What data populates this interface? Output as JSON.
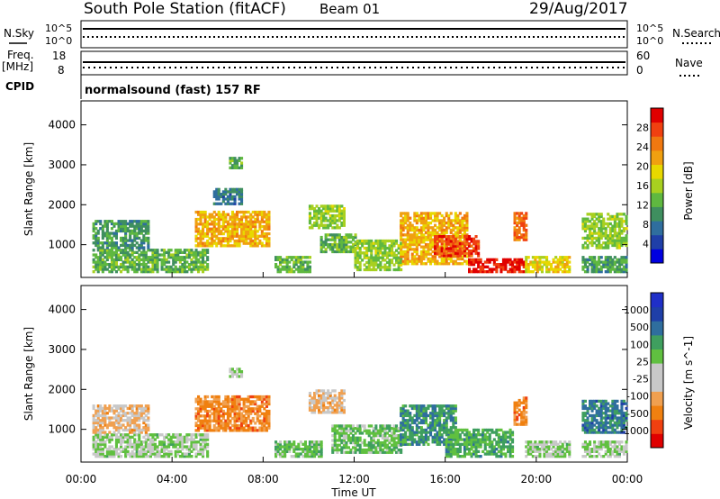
{
  "header": {
    "station": "South Pole Station (fitACF)",
    "beam": "Beam 01",
    "date": "29/Aug/2017"
  },
  "sky_panel": {
    "left_label": "N.Sky",
    "left_ticks": [
      "10^5",
      "10^0"
    ],
    "right_label": "N.Search",
    "right_ticks": [
      "10^5",
      "10^0"
    ]
  },
  "freq_panel": {
    "left_label": "Freq.",
    "left_unit": "[MHz]",
    "left_ticks": [
      "18",
      "8"
    ],
    "right_label": "Nave",
    "right_ticks": [
      "60",
      "0"
    ]
  },
  "cpid": {
    "label": "CPID",
    "text": "normalsound (fast) 157 RF"
  },
  "x_axis": {
    "label": "Time UT",
    "ticks": [
      "00:00",
      "04:00",
      "08:00",
      "12:00",
      "16:00",
      "20:00",
      "00:00"
    ],
    "range_hours": [
      0,
      24
    ]
  },
  "chart_data": [
    {
      "type": "heatmap",
      "name": "power",
      "ylabel": "Slant Range [km]",
      "ylim": [
        180,
        4600
      ],
      "yticks": [
        "1000",
        "2000",
        "3000",
        "4000"
      ],
      "colorbar": {
        "label": "Power [dB]",
        "ticks": [
          "28",
          "24",
          "20",
          "16",
          "12",
          "8",
          "4"
        ],
        "colors": [
          "#0000e0",
          "#1f3fa8",
          "#2f6e9e",
          "#3f8f5f",
          "#5fb840",
          "#a8d020",
          "#e8d800",
          "#f0a010",
          "#f07810",
          "#f04010",
          "#e00000"
        ],
        "range": [
          0,
          30
        ]
      },
      "regions": [
        {
          "t": [
            0.5,
            5.5
          ],
          "r": [
            300,
            900
          ],
          "v": 12
        },
        {
          "t": [
            0.5,
            3.0
          ],
          "r": [
            900,
            1600
          ],
          "v": 10
        },
        {
          "t": [
            5.0,
            8.2
          ],
          "r": [
            950,
            1800
          ],
          "v": 20
        },
        {
          "t": [
            5.8,
            7.0
          ],
          "r": [
            2000,
            2400
          ],
          "v": 8
        },
        {
          "t": [
            6.5,
            7.0
          ],
          "r": [
            2900,
            3200
          ],
          "v": 12
        },
        {
          "t": [
            8.5,
            10.0
          ],
          "r": [
            300,
            700
          ],
          "v": 12
        },
        {
          "t": [
            10.0,
            11.5
          ],
          "r": [
            1400,
            2000
          ],
          "v": 14
        },
        {
          "t": [
            10.5,
            12.0
          ],
          "r": [
            800,
            1250
          ],
          "v": 12
        },
        {
          "t": [
            12.0,
            14.0
          ],
          "r": [
            350,
            1100
          ],
          "v": 14
        },
        {
          "t": [
            14.0,
            17.0
          ],
          "r": [
            500,
            1800
          ],
          "v": 20
        },
        {
          "t": [
            15.5,
            17.5
          ],
          "r": [
            700,
            1200
          ],
          "v": 26
        },
        {
          "t": [
            17.0,
            19.5
          ],
          "r": [
            300,
            650
          ],
          "v": 28
        },
        {
          "t": [
            19.0,
            19.6
          ],
          "r": [
            1100,
            1800
          ],
          "v": 24
        },
        {
          "t": [
            19.5,
            21.5
          ],
          "r": [
            300,
            700
          ],
          "v": 18
        },
        {
          "t": [
            22.0,
            24.0
          ],
          "r": [
            900,
            1800
          ],
          "v": 14
        },
        {
          "t": [
            22.0,
            24.0
          ],
          "r": [
            300,
            700
          ],
          "v": 10
        }
      ]
    },
    {
      "type": "heatmap",
      "name": "velocity",
      "ylabel": "Slant Range [km]",
      "ylim": [
        180,
        4600
      ],
      "yticks": [
        "1000",
        "2000",
        "3000",
        "4000"
      ],
      "colorbar": {
        "label": "Velocity [m s^-1]",
        "ticks": [
          "1000",
          "500",
          "100",
          "25",
          "-25",
          "-100",
          "-500",
          "-1000"
        ],
        "colors": [
          "#e00000",
          "#f04010",
          "#f08010",
          "#f0a050",
          "#c8c8c8",
          "#c8c8c8",
          "#60c040",
          "#3f9f5f",
          "#2f6e9e",
          "#1f3fa8",
          "#1f2fc8"
        ],
        "range": [
          -1000,
          1000
        ]
      },
      "regions": [
        {
          "t": [
            0.5,
            5.5
          ],
          "r": [
            300,
            900
          ],
          "v": 100
        },
        {
          "t": [
            0.5,
            3.0
          ],
          "r": [
            900,
            1600
          ],
          "v": -300
        },
        {
          "t": [
            5.0,
            8.2
          ],
          "r": [
            950,
            1800
          ],
          "v": -500
        },
        {
          "t": [
            6.5,
            7.0
          ],
          "r": [
            2300,
            2500
          ],
          "v": 0
        },
        {
          "t": [
            8.5,
            10.5
          ],
          "r": [
            300,
            700
          ],
          "v": 200
        },
        {
          "t": [
            10.0,
            11.5
          ],
          "r": [
            1400,
            2000
          ],
          "v": -300
        },
        {
          "t": [
            11.0,
            14.0
          ],
          "r": [
            400,
            1100
          ],
          "v": 200
        },
        {
          "t": [
            14.0,
            16.5
          ],
          "r": [
            600,
            1600
          ],
          "v": 400
        },
        {
          "t": [
            16.0,
            19.0
          ],
          "r": [
            300,
            1000
          ],
          "v": 300
        },
        {
          "t": [
            19.0,
            19.6
          ],
          "r": [
            1100,
            1800
          ],
          "v": -500
        },
        {
          "t": [
            19.5,
            21.5
          ],
          "r": [
            300,
            700
          ],
          "v": 100
        },
        {
          "t": [
            22.0,
            24.0
          ],
          "r": [
            900,
            1700
          ],
          "v": 500
        },
        {
          "t": [
            22.0,
            24.0
          ],
          "r": [
            300,
            700
          ],
          "v": 100
        }
      ]
    }
  ]
}
